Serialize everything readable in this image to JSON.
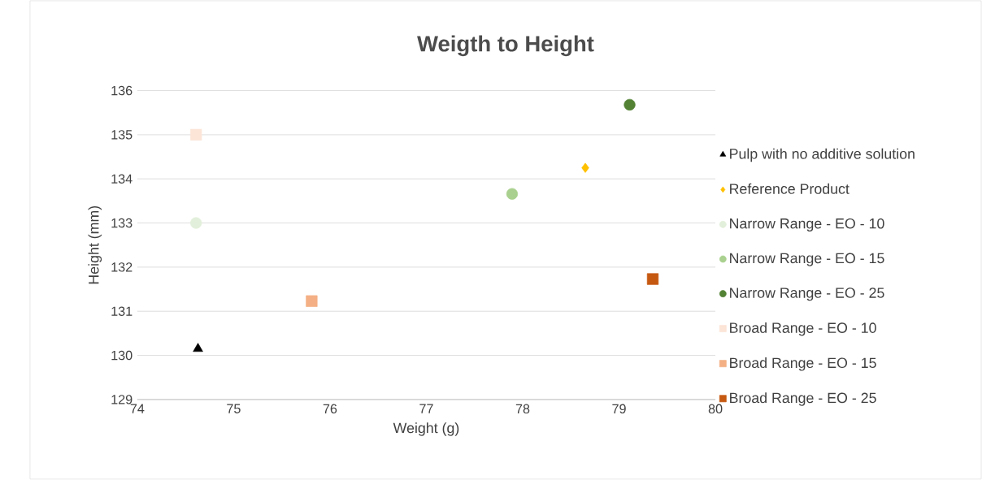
{
  "chart_data": {
    "type": "scatter",
    "title": "Weigth to Height",
    "xlabel": "Weight (g)",
    "ylabel": "Height (mm)",
    "xlim": [
      74,
      80
    ],
    "xticks": [
      74,
      75,
      76,
      77,
      78,
      79,
      80
    ],
    "ylim": [
      129,
      136
    ],
    "yticks": [
      129,
      130,
      131,
      132,
      133,
      134,
      135,
      136
    ],
    "grid": "y",
    "legend": "right",
    "series": [
      {
        "name": "Pulp with no additive solution",
        "color": "#000000",
        "marker": "triangle",
        "x": [
          74.63
        ],
        "values": [
          130.15
        ]
      },
      {
        "name": "Reference Product",
        "color": "#ffc000",
        "marker": "diamond",
        "x": [
          78.65
        ],
        "values": [
          134.25
        ]
      },
      {
        "name": "Narrow Range - EO - 10",
        "color": "#e2efda",
        "marker": "circle",
        "x": [
          74.61
        ],
        "values": [
          133.0
        ]
      },
      {
        "name": "Narrow Range - EO - 15",
        "color": "#a9d08e",
        "marker": "circle",
        "x": [
          77.89
        ],
        "values": [
          133.66
        ]
      },
      {
        "name": "Narrow Range - EO - 25",
        "color": "#548235",
        "marker": "circle",
        "x": [
          79.11
        ],
        "values": [
          135.68
        ]
      },
      {
        "name": "Broad Range - EO - 10",
        "color": "#fce4d6",
        "marker": "square",
        "x": [
          74.61
        ],
        "values": [
          135.0
        ]
      },
      {
        "name": "Broad Range - EO - 15",
        "color": "#f4b084",
        "marker": "square",
        "x": [
          75.81
        ],
        "values": [
          131.23
        ]
      },
      {
        "name": "Broad Range - EO - 25",
        "color": "#c65911",
        "marker": "square",
        "x": [
          79.35
        ],
        "values": [
          131.73
        ]
      }
    ]
  }
}
